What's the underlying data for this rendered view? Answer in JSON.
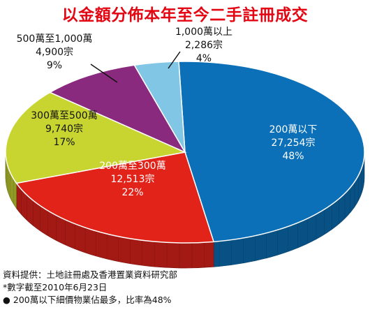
{
  "chart_data": {
    "type": "pie",
    "title": "以金額分佈本年至今二手註冊成交",
    "slices": [
      {
        "name": "200萬以下",
        "count": "27,254宗",
        "percent": 48,
        "color": "#0b70b8"
      },
      {
        "name": "200萬至300萬",
        "count": "12,513宗",
        "percent": 22,
        "color": "#e2231a"
      },
      {
        "name": "300萬至500萬",
        "count": "9,740宗",
        "percent": 17,
        "color": "#c8d530"
      },
      {
        "name": "500萬至1,000萬",
        "count": "4,900宗",
        "percent": 9,
        "color": "#8a2a7e"
      },
      {
        "name": "1,000萬以上",
        "count": "2,286宗",
        "percent": 4,
        "color": "#82c6e6"
      }
    ]
  },
  "notes": {
    "source": "資料提供：土地註冊處及香港置業資料研究部",
    "date": "*數字截至2010年6月23日",
    "summary": "200萬以下細價物業佔最多，比率為48%"
  },
  "bullet_icon": "bullet-dot"
}
